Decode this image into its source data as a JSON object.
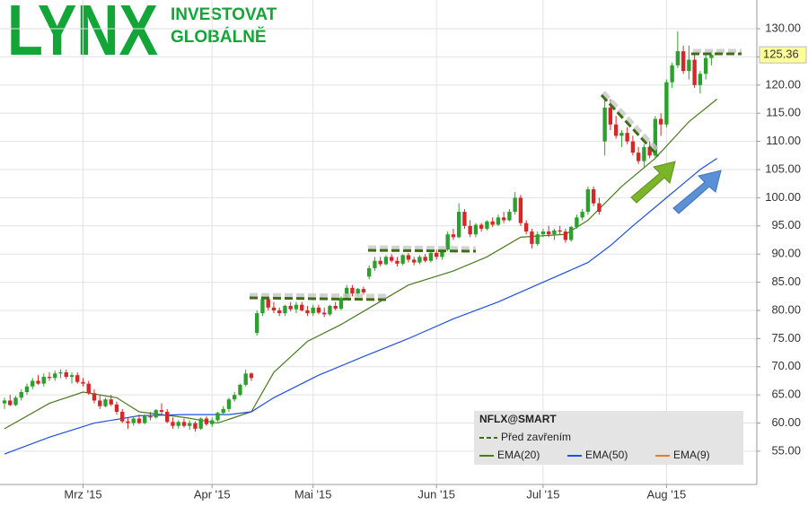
{
  "chart_data": {
    "type": "candlestick",
    "logo": {
      "brand": "LYNX",
      "line1": "INVESTOVAT",
      "line2": "GLOBÁLNĚ"
    },
    "symbol": "NFLX@SMART",
    "prev_close_label": "Před zavřením",
    "last_price": 125.36,
    "up_color": "#2ca02c",
    "down_color": "#d62728",
    "grid": true,
    "xlim": [
      -0.8,
      134.1
    ],
    "ylim": [
      49.1,
      135.1
    ],
    "xticks": [
      {
        "value": 14,
        "label": "Mrz '15"
      },
      {
        "value": 37,
        "label": "Apr '15"
      },
      {
        "value": 55,
        "label": "Mai '15"
      },
      {
        "value": 77,
        "label": "Jun '15"
      },
      {
        "value": 96,
        "label": "Jul '15"
      },
      {
        "value": 118,
        "label": "Aug '15"
      }
    ],
    "yticks": [
      {
        "value": 55,
        "label": "55.00"
      },
      {
        "value": 60,
        "label": "60.00"
      },
      {
        "value": 65,
        "label": "65.00"
      },
      {
        "value": 70,
        "label": "70.00"
      },
      {
        "value": 75,
        "label": "75.00"
      },
      {
        "value": 80,
        "label": "80.00"
      },
      {
        "value": 85,
        "label": "85.00"
      },
      {
        "value": 90,
        "label": "90.00"
      },
      {
        "value": 95,
        "label": "95.00"
      },
      {
        "value": 100,
        "label": "100.00"
      },
      {
        "value": 105,
        "label": "105.00"
      },
      {
        "value": 110,
        "label": "110.00"
      },
      {
        "value": 115,
        "label": "115.00"
      },
      {
        "value": 120,
        "label": "120.00"
      },
      {
        "value": 125,
        "label": "125.00"
      },
      {
        "value": 130,
        "label": "130.00"
      }
    ],
    "candles": [
      [
        63.5,
        64.5,
        62.5,
        64
      ],
      [
        64,
        65,
        63,
        63.2
      ],
      [
        63.2,
        64.8,
        63,
        64.5
      ],
      [
        64.5,
        66,
        64,
        65.5
      ],
      [
        65.5,
        67,
        65,
        66.5
      ],
      [
        66.5,
        68,
        66,
        67.5
      ],
      [
        67.5,
        68.5,
        66.8,
        67
      ],
      [
        67,
        68.8,
        66.5,
        68.2
      ],
      [
        68.2,
        69,
        67.5,
        68
      ],
      [
        68,
        69.3,
        67.5,
        68.8
      ],
      [
        68.8,
        69.5,
        68,
        69
      ],
      [
        69,
        69.5,
        67.8,
        68.2
      ],
      [
        68.2,
        69,
        67,
        68.5
      ],
      [
        68.5,
        69,
        67,
        67.3
      ],
      [
        67.3,
        68,
        66.5,
        67
      ],
      [
        67,
        67.5,
        65,
        65.3
      ],
      [
        65.3,
        66,
        63.5,
        64
      ],
      [
        64,
        65,
        62.5,
        63
      ],
      [
        63,
        64.5,
        62.8,
        64.2
      ],
      [
        64.2,
        65,
        63,
        63.3
      ],
      [
        63.3,
        63.8,
        61.5,
        62
      ],
      [
        62,
        62.5,
        60,
        60.3
      ],
      [
        60.3,
        61,
        59,
        60
      ],
      [
        60,
        61.2,
        59.5,
        60.8
      ],
      [
        60.8,
        61.5,
        59.8,
        60
      ],
      [
        60,
        61.5,
        59.8,
        61.2
      ],
      [
        61.2,
        62,
        60.5,
        61
      ],
      [
        61,
        62.5,
        60.8,
        62.3
      ],
      [
        62.3,
        63.5,
        61.5,
        62
      ],
      [
        62,
        62.5,
        60,
        60.2
      ],
      [
        60.2,
        61,
        59,
        59.5
      ],
      [
        59.5,
        60.5,
        59,
        60.2
      ],
      [
        60.2,
        60.8,
        59.2,
        59.5
      ],
      [
        59.5,
        60.5,
        58.8,
        60
      ],
      [
        60,
        60.3,
        58.5,
        59
      ],
      [
        59,
        61,
        58.8,
        60.8
      ],
      [
        60.8,
        61.2,
        59.5,
        59.8
      ],
      [
        59.8,
        61,
        59.3,
        60.5
      ],
      [
        60.5,
        62,
        60.2,
        61.8
      ],
      [
        61.8,
        63,
        61.5,
        62.5
      ],
      [
        62.5,
        64.5,
        62,
        64.2
      ],
      [
        64.2,
        65.5,
        63.8,
        65
      ],
      [
        65,
        67,
        64.8,
        66.8
      ],
      [
        66.8,
        69.5,
        66.5,
        68.8
      ],
      [
        68.8,
        69,
        67.5,
        68
      ],
      [
        76,
        80,
        75.5,
        79.5
      ],
      [
        79.5,
        82.5,
        79,
        82
      ],
      [
        82,
        82.5,
        80,
        80.5
      ],
      [
        80.5,
        81.5,
        79.5,
        80
      ],
      [
        80,
        80.5,
        79,
        79.5
      ],
      [
        79.5,
        81,
        79,
        80.8
      ],
      [
        80.8,
        81.5,
        79.8,
        80.2
      ],
      [
        80.2,
        81.5,
        79.5,
        81
      ],
      [
        81,
        81.5,
        79.8,
        80
      ],
      [
        80,
        80.8,
        79,
        79.5
      ],
      [
        79.5,
        81,
        79,
        80.5
      ],
      [
        80.5,
        81,
        79.3,
        79.6
      ],
      [
        79.6,
        80.5,
        78.8,
        79.3
      ],
      [
        79.3,
        81,
        79,
        80.8
      ],
      [
        80.8,
        81.5,
        80,
        80.3
      ],
      [
        80.3,
        82.5,
        80,
        82.2
      ],
      [
        82.2,
        84.5,
        82,
        84
      ],
      [
        84,
        84.5,
        82.5,
        83
      ],
      [
        83,
        84,
        82.5,
        83.8
      ],
      [
        83.8,
        84.2,
        82.8,
        83.2
      ],
      [
        86,
        88,
        85.5,
        87.5
      ],
      [
        87.5,
        89.5,
        87,
        88.8
      ],
      [
        88.8,
        89.5,
        87.8,
        88.2
      ],
      [
        88.2,
        89.8,
        88,
        89.5
      ],
      [
        89.5,
        90,
        88.5,
        88.8
      ],
      [
        88.8,
        89.5,
        87.8,
        88.3
      ],
      [
        88.3,
        90,
        88,
        89.8
      ],
      [
        89.8,
        90.2,
        88.5,
        89
      ],
      [
        89,
        89.5,
        88,
        88.5
      ],
      [
        88.5,
        89.8,
        88.2,
        89.5
      ],
      [
        89.5,
        90,
        88.5,
        88.8
      ],
      [
        88.8,
        90.5,
        88.5,
        90.2
      ],
      [
        90.2,
        90.8,
        89,
        89.5
      ],
      [
        89.5,
        91,
        89,
        90.8
      ],
      [
        90.8,
        94,
        90.5,
        93.5
      ],
      [
        93.5,
        94.5,
        92.5,
        93
      ],
      [
        93,
        99,
        92.8,
        97.5
      ],
      [
        97.5,
        98,
        94.5,
        95
      ],
      [
        95,
        96,
        93,
        93.5
      ],
      [
        93.5,
        95.5,
        93,
        95.2
      ],
      [
        95.2,
        95.5,
        94,
        94.5
      ],
      [
        94.5,
        96,
        94.2,
        95.8
      ],
      [
        95.8,
        96.5,
        94.8,
        95.2
      ],
      [
        95.2,
        97,
        95,
        96.5
      ],
      [
        96.5,
        97.5,
        95.5,
        96
      ],
      [
        96,
        98,
        95.8,
        97.5
      ],
      [
        97.5,
        101,
        97,
        100
      ],
      [
        100,
        100.5,
        95,
        95.5
      ],
      [
        95.5,
        96,
        93.5,
        94
      ],
      [
        94,
        94.5,
        91,
        91.8
      ],
      [
        91.8,
        94,
        91.5,
        93.5
      ],
      [
        93.5,
        94.5,
        93,
        94
      ],
      [
        94,
        95,
        93,
        93.5
      ],
      [
        93.5,
        94.5,
        92.5,
        94.2
      ],
      [
        94.2,
        95,
        93.5,
        94
      ],
      [
        94,
        94.5,
        92,
        92.5
      ],
      [
        92.5,
        95,
        92.2,
        94.8
      ],
      [
        94.8,
        97,
        94.5,
        96.5
      ],
      [
        96.5,
        98,
        96,
        97.5
      ],
      [
        97.5,
        102,
        97,
        101.5
      ],
      [
        101.5,
        102,
        98.5,
        99
      ],
      [
        99,
        100,
        97,
        97.5
      ],
      [
        110,
        118,
        107.5,
        116
      ],
      [
        116,
        117.5,
        112,
        113
      ],
      [
        113,
        114.5,
        110.5,
        111
      ],
      [
        111,
        112,
        109,
        111.5
      ],
      [
        111.5,
        112.5,
        109.5,
        110
      ],
      [
        110,
        111,
        107.5,
        108
      ],
      [
        108,
        109,
        106,
        106.5
      ],
      [
        106.5,
        109.5,
        105.5,
        109
      ],
      [
        109,
        110,
        107,
        107.5
      ],
      [
        107.5,
        114.5,
        107,
        114
      ],
      [
        114,
        115,
        111,
        113
      ],
      [
        113,
        121,
        112.5,
        120.5
      ],
      [
        120.5,
        124,
        119.5,
        123.5
      ],
      [
        123.5,
        129.5,
        123,
        126
      ],
      [
        126,
        127,
        122,
        122.5
      ],
      [
        122.5,
        127,
        121,
        124.5
      ],
      [
        124.5,
        125.5,
        119.5,
        120
      ],
      [
        120,
        122.5,
        118.5,
        122
      ],
      [
        122,
        125.5,
        121,
        124.8
      ],
      [
        124.8,
        126,
        123.5,
        125.36
      ]
    ],
    "indicators": [
      {
        "name": "EMA(20)",
        "color": "#4a7a1e",
        "x": [
          0,
          8,
          14,
          20,
          24,
          32,
          38,
          44,
          48,
          54,
          60,
          66,
          72,
          80,
          86,
          92,
          100,
          104,
          110,
          116,
          122,
          127
        ],
        "values": [
          59,
          63.5,
          65.5,
          64.5,
          62,
          61,
          60,
          62,
          69,
          74.5,
          77.5,
          81,
          84.5,
          87,
          89.5,
          93,
          93.5,
          96,
          102,
          107,
          113.5,
          117.5
        ]
      },
      {
        "name": "EMA(50)",
        "color": "#1f4fe0",
        "x": [
          0,
          8,
          16,
          24,
          32,
          40,
          44,
          48,
          56,
          64,
          72,
          80,
          88,
          96,
          104,
          108,
          112,
          118,
          124,
          127
        ],
        "values": [
          54.5,
          57.5,
          60,
          61.3,
          61.5,
          61.5,
          62,
          64.5,
          68.5,
          71.8,
          75,
          78.5,
          81.5,
          85,
          88.5,
          91.5,
          95,
          100,
          105,
          107
        ]
      },
      {
        "name": "EMA(9)",
        "color": "#f07818"
      }
    ]
  }
}
